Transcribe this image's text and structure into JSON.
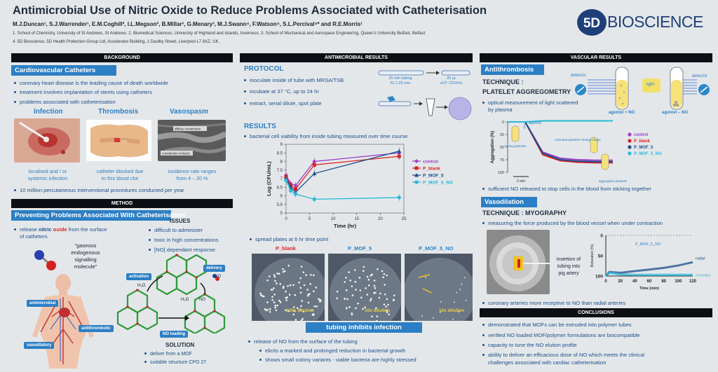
{
  "header": {
    "title": "Antimicrobial Use of Nitric Oxide to Reduce Problems Associated with Catheterisation",
    "authors": "M.J.Duncan¹, S.J.Warrender¹, E.M.Coghill², I.L.Megson², B.Millar³, G.Menary³, M.J.Swann⁴, F.Watson⁴, S.L.Percival⁴* and R.E.Morris¹",
    "affil1": "1.  School of Chemistry, University of St Andrews, St Andrews. 2. Biomedical Sciences, University of Highland and Islands, Inverness. 3. School of Mechanical and Aerospace Engineering, Queen's University Belfast, Belfast",
    "affil2": "4. 5D Bioscience, 5D Health Protection Group Ltd, Accelerator Building, 1 Daulby Street, Liverpool L7 8XZ, UK.",
    "logo_mark": "5D",
    "logo_text": "BIOSCIENCE"
  },
  "background": {
    "bar": "BACKGROUND",
    "sub": "Cardiovascular Catheters",
    "bullets": [
      "coronary heart disease is the leading cause of death worldwide",
      "treatment involves implantation of stents using catheters",
      "problems associated with catheterisation"
    ],
    "cols": [
      {
        "head": "Infection",
        "cap1": "localised and / or",
        "cap2": "systemic infection"
      },
      {
        "head": "Thrombosis",
        "cap1": "catheter blocked due",
        "cap2": "to this blood clot"
      },
      {
        "head": "Vasospasm",
        "cap1": "incidence rate ranges",
        "cap2": "from 4 – 20 %"
      }
    ],
    "clot_label": "Clot",
    "vaso_label1": "diffuse constriction",
    "vaso_label2": "constriction of ducts",
    "bullet4": "10 million percutaneous interventional procedures conducted per year"
  },
  "method": {
    "bar": "METHOD",
    "sub": "Preventing Problems Associated With Catheterisation",
    "release_pre": "release",
    "release_nitric": "nitric",
    "release_oxide": "oxide",
    "release_post": "from the surface",
    "release_line2": "of catheters",
    "quote1": "“gaseous",
    "quote2": "endogenous",
    "quote3": "signalling",
    "quote4": "molecule”",
    "issues_head": "ISSUES",
    "issues": [
      "difficult to administer",
      "toxic in high concentrations",
      "[NO] dependant response"
    ],
    "labels": {
      "antimicrobial": "antimicrobial",
      "antithrombotic": "antithrombotic",
      "vasodilatory": "vasodilatory",
      "activation": "activation",
      "delivery": "delivery",
      "no_loading": "NO loading",
      "h2o_a": "H₂O",
      "no_a": "NO",
      "h2o_b": "H₂O",
      "no_b": "NO"
    },
    "solution_head": "SOLUTION",
    "solution": [
      "deliver from a MOF",
      "suitable structure CPO 27"
    ]
  },
  "antimicrobial": {
    "bar": "ANTIMICROBIAL   RESULTS",
    "protocol_head": "PROTOCOL",
    "protocol": [
      "inoculate inside of tube with MRSA/TSB",
      "incubate at 37 °C, up to 24 hr",
      "extract, serial dilute, spot plate"
    ],
    "tube1_label1": "25 mm tubing",
    "tube1_label2": "ID 1.25 mm",
    "tube2_label1": "25 µL",
    "tube2_label2": "x10⁵ CFU/mL",
    "results_head": "RESULTS",
    "results_bullet": "bacterial cell viability from inside tubing measured over time course",
    "spread_bullet": "spread plates at 6 hr time point",
    "plates": [
      {
        "label": "P_blank",
        "dilution": "100x dilution"
      },
      {
        "label": "P_MOF_5",
        "dilution": "10x dilution"
      },
      {
        "label": "P_MOF_5_NO",
        "dilution": "10x dilution"
      }
    ],
    "banner": "tubing inhibits infection",
    "final": [
      "release of NO from the surface of the tubing",
      "elicits a marked and prolonged reduction in bacterial growth",
      "shows small colony variants - viable bacteria are highly stressed"
    ]
  },
  "vascular": {
    "bar": "VASCULAR RESULTS",
    "sub1": "Antithrombosis",
    "tech1_a": "TECHNIQUE :",
    "tech1_b": "PLATELET AGGREGOMETRY",
    "detector": "detector",
    "light": "light",
    "agonist_no": "agonist + NO",
    "agonist_minus": "agonist – NO",
    "bullet1a": "optical measurement of light scattered",
    "bullet1b": "by plasma",
    "agg_labels": {
      "agonist": "agonist",
      "resting": "resting platelets",
      "activated": "activated platelets change shape",
      "aggregated": "aggregated platelets",
      "ylabel": "Aggregation (%)",
      "scale": "2 min"
    },
    "bullet2": "sufficient NO released to stop cells in the blood from sticking together",
    "sub2": "Vasodilation",
    "tech2": "TECHNIQUE : MYOGRAPHY",
    "bullet3": "measuring the force produced by the blood vessel when under contraction",
    "insertion": [
      "insertion of",
      "tubing into",
      "pig artery"
    ],
    "myo": {
      "series_label": "P_MOF_5_NO",
      "radial": "radial",
      "coronary": "coronary",
      "ylabel": "Relaxation (%)",
      "xlabel": "Time (min)"
    },
    "bullet4": "coronary arteries more receptive to NO than radial arteries"
  },
  "conclusions": {
    "bar": "CONCLUSIONS",
    "items": [
      "demonstrated that MOFs can be extruded into polymer tubes",
      "verified NO loaded MOF/polymer formulations are biocompatible",
      "capacity to tune the NO elution profile",
      "ability to deliver an efficacious dose of NO which meets the clinical",
      "challenges associated with cardiac catheterisation"
    ]
  },
  "colors": {
    "accent": "#2c7fc4",
    "dark": "#0c1014",
    "red": "#e02020",
    "purple": "#9b3fc8",
    "navy": "#1d4f8a"
  },
  "chart_data": [
    {
      "type": "line",
      "xlabel": "Time (hr)",
      "ylabel": "Log (CFU/mL)",
      "xlim": [
        0,
        25
      ],
      "ylim": [
        5,
        9
      ],
      "xticks": [
        0,
        5,
        10,
        15,
        20,
        25
      ],
      "yticks": [
        5,
        5.5,
        6,
        6.5,
        7,
        7.5,
        8,
        8.5,
        9
      ],
      "legend_position": "right",
      "series": [
        {
          "name": "control",
          "color": "#9b3fc8",
          "marker": "diamond",
          "x": [
            0,
            1,
            2,
            6,
            24
          ],
          "y": [
            7.2,
            6.7,
            6.6,
            8.0,
            8.5
          ]
        },
        {
          "name": "P_blank",
          "color": "#e02020",
          "marker": "square",
          "x": [
            0,
            1,
            2,
            6,
            24
          ],
          "y": [
            7.1,
            6.6,
            6.4,
            7.8,
            8.3
          ]
        },
        {
          "name": "P_MOF_5",
          "color": "#1d4f8a",
          "marker": "triangle",
          "x": [
            0,
            1,
            2,
            6,
            24
          ],
          "y": [
            7.0,
            6.5,
            6.2,
            7.3,
            8.6
          ]
        },
        {
          "name": "P_MOF_5_NO",
          "color": "#27b8d8",
          "marker": "circle",
          "x": [
            0,
            1,
            2,
            6,
            24
          ],
          "y": [
            6.9,
            6.3,
            6.1,
            5.8,
            5.9
          ]
        }
      ]
    },
    {
      "type": "line",
      "xlabel": "",
      "ylabel": "Aggregation (%)",
      "ylim": [
        0,
        100
      ],
      "yticks": [
        0,
        25,
        50,
        75,
        100
      ],
      "legend_position": "right",
      "series": [
        {
          "name": "control",
          "color": "#9b3fc8",
          "x": [
            0,
            1,
            2,
            3,
            4,
            5,
            6
          ],
          "y": [
            0,
            0,
            60,
            72,
            75,
            76,
            76
          ]
        },
        {
          "name": "P_blank",
          "color": "#e02020",
          "x": [
            0,
            1,
            2,
            3,
            4,
            5,
            6
          ],
          "y": [
            0,
            0,
            65,
            77,
            80,
            81,
            81
          ]
        },
        {
          "name": "P_MOF_5",
          "color": "#1d4f8a",
          "x": [
            0,
            1,
            2,
            3,
            4,
            5,
            6
          ],
          "y": [
            0,
            0,
            62,
            75,
            78,
            79,
            79
          ]
        },
        {
          "name": "P_MOF_5_NO",
          "color": "#27b8d8",
          "x": [
            0,
            1,
            2,
            3,
            4,
            5,
            6
          ],
          "y": [
            0,
            0,
            -2,
            -2,
            -2,
            -2,
            -2
          ]
        }
      ]
    },
    {
      "type": "line",
      "xlabel": "Time (min)",
      "ylabel": "Relaxation (%)",
      "xlim": [
        0,
        120
      ],
      "ylim": [
        0,
        100
      ],
      "xticks": [
        0,
        20,
        40,
        60,
        80,
        100,
        120
      ],
      "yticks": [
        0,
        50,
        100
      ],
      "series": [
        {
          "name": "radial",
          "color": "#1d4f8a",
          "x": [
            0,
            5,
            20,
            40,
            60,
            80,
            100,
            120
          ],
          "y": [
            100,
            90,
            92,
            88,
            84,
            80,
            74,
            66
          ]
        },
        {
          "name": "coronary",
          "color": "#27b8d8",
          "x": [
            0,
            5,
            20,
            40,
            60,
            80,
            100,
            120
          ],
          "y": [
            100,
            92,
            96,
            97,
            97,
            97,
            97,
            97
          ]
        }
      ]
    }
  ]
}
